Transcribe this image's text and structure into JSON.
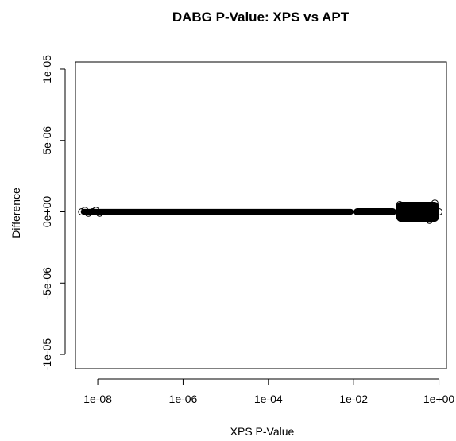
{
  "chart_data": {
    "type": "scatter",
    "title": "DABG P-Value: XPS vs APT",
    "xlabel": "XPS P-Value",
    "ylabel": "Difference",
    "x_scale": "log10",
    "xlim": [
      3e-09,
      1.5
    ],
    "ylim": [
      -1.1e-05,
      1.05e-05
    ],
    "x_ticks": [
      1e-08,
      1e-06,
      0.0001,
      0.01,
      1
    ],
    "x_tick_labels": [
      "1e-08",
      "1e-06",
      "1e-04",
      "1e-02",
      "1e+00"
    ],
    "y_ticks": [
      -1e-05,
      -5e-06,
      0,
      5e-06,
      1e-05
    ],
    "y_tick_labels": [
      "-1e-05",
      "-5e-06",
      "0e+00",
      "5e-06",
      "1e-05"
    ],
    "grid": false,
    "legend": "none",
    "marker": "open circle",
    "bands": [
      {
        "x_from": 4e-09,
        "x_to": 0.01,
        "y_min": -2e-07,
        "y_max": 2e-07
      },
      {
        "x_from": 0.01,
        "x_to": 0.1,
        "y_min": -2.5e-07,
        "y_max": 2.5e-07
      },
      {
        "x_from": 0.1,
        "x_to": 1,
        "y_min": -7e-07,
        "y_max": 7e-07
      }
    ],
    "points": [
      {
        "x": 4.2e-09,
        "y": 0
      },
      {
        "x": 5e-09,
        "y": 1e-07
      },
      {
        "x": 6e-09,
        "y": -1e-07
      },
      {
        "x": 7.5e-09,
        "y": 0
      },
      {
        "x": 9e-09,
        "y": 1e-07
      },
      {
        "x": 1.1e-08,
        "y": -1e-07
      },
      {
        "x": 0.12,
        "y": 5e-07
      },
      {
        "x": 0.2,
        "y": -5e-07
      },
      {
        "x": 0.35,
        "y": 4e-07
      },
      {
        "x": 0.6,
        "y": -6e-07
      },
      {
        "x": 0.8,
        "y": 6e-07
      },
      {
        "x": 1.0,
        "y": 0
      }
    ]
  }
}
